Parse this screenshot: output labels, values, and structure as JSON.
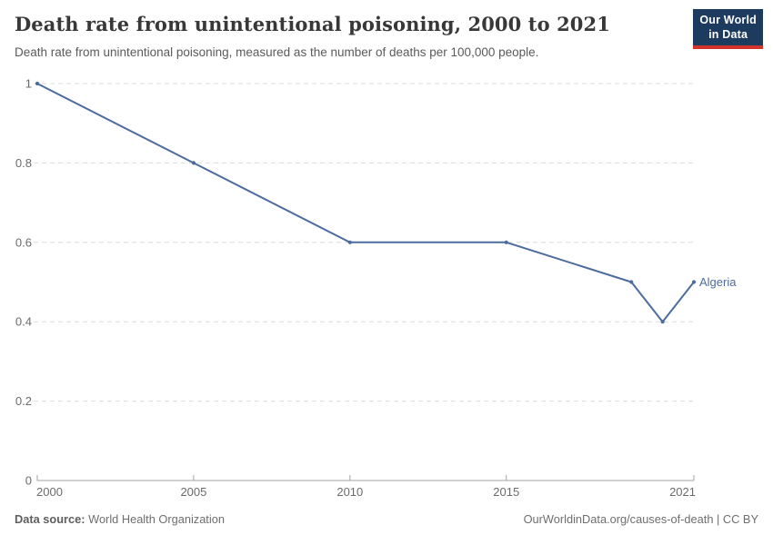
{
  "header": {
    "title": "Death rate from unintentional poisoning, 2000 to 2021",
    "subtitle": "Death rate from unintentional poisoning, measured as the number of deaths per 100,000 people."
  },
  "logo": {
    "line1": "Our World",
    "line2": "in Data"
  },
  "chart_data": {
    "type": "line",
    "title": "Death rate from unintentional poisoning, 2000 to 2021",
    "xlabel": "",
    "ylabel": "",
    "xlim": [
      2000,
      2021
    ],
    "ylim": [
      0,
      1
    ],
    "xticks": [
      2000,
      2005,
      2010,
      2015,
      2021
    ],
    "yticks": [
      0,
      0.2,
      0.4,
      0.6,
      0.8,
      1
    ],
    "ytick_labels": [
      "0",
      "0.2",
      "0.4",
      "0.6",
      "0.8",
      "1"
    ],
    "grid": true,
    "legend_position": "end-of-line",
    "series": [
      {
        "name": "Algeria",
        "color": "#4c6b9e",
        "x": [
          2000,
          2005,
          2010,
          2015,
          2019,
          2020,
          2021
        ],
        "y": [
          1.0,
          0.8,
          0.6,
          0.6,
          0.5,
          0.4,
          0.5
        ]
      }
    ]
  },
  "footer": {
    "source_label": "Data source:",
    "source_value": "World Health Organization",
    "right_text": "OurWorldinData.org/causes-of-death | CC BY"
  },
  "colors": {
    "line": "#4c6b9e",
    "grid": "#dcdcdc",
    "axis": "#a3a3a3",
    "tick_label": "#6b6b6b",
    "title": "#383838",
    "subtitle": "#5a5a5a",
    "footer": "#6e6e6e",
    "logo_bg": "#1d3a5f",
    "logo_red": "#d0342c"
  }
}
